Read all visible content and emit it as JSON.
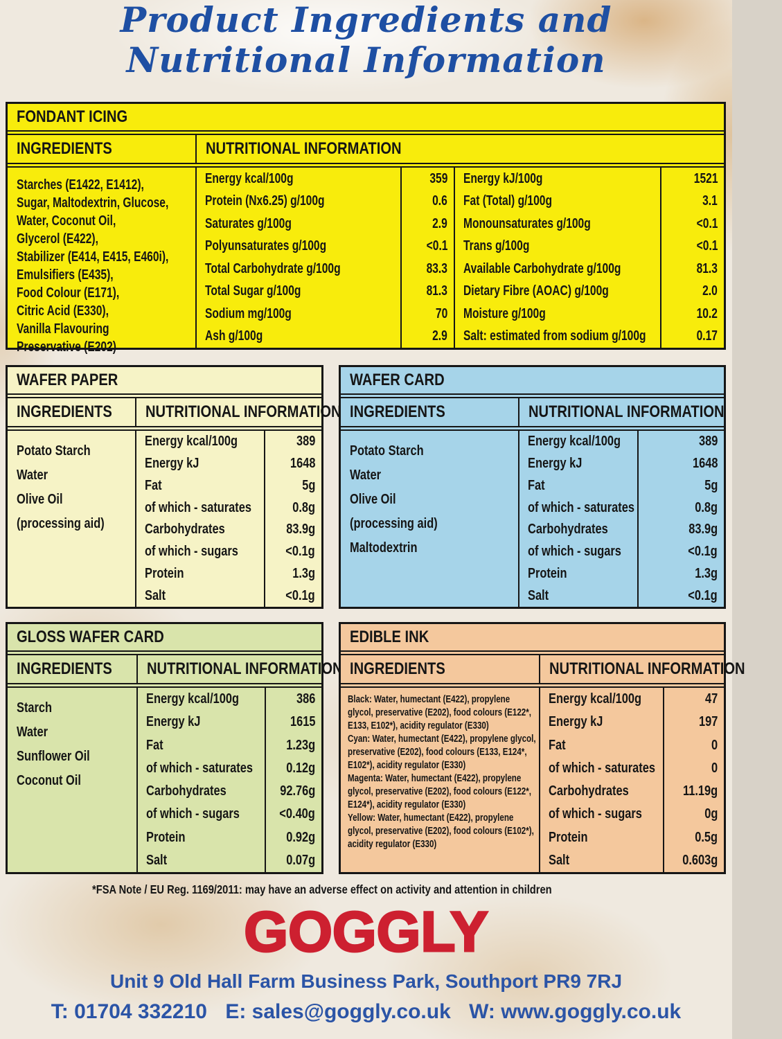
{
  "page_title": {
    "line1": "Product Ingredients and",
    "line2": "Nutritional Information",
    "color": "#1e4fa3"
  },
  "tables": {
    "fondant": {
      "title": "FONDANT ICING",
      "color": "#f8ec0c",
      "ingredients_header": "INGREDIENTS",
      "nutrition_header": "NUTRITIONAL INFORMATION",
      "ingredients": [
        "Starches (E1422, E1412),",
        "Sugar, Maltodextrin, Glucose,",
        "Water, Coconut Oil,",
        "Glycerol (E422),",
        "Stabilizer (E414, E415, E460i),",
        "Emulsifiers (E435),",
        "Food Colour (E171),",
        "Citric Acid (E330),",
        "Vanilla Flavouring",
        "Preservative (E202)"
      ],
      "rows": [
        {
          "label_left": "Energy kcal/100g",
          "value_left": "359",
          "label_right": "Energy kJ/100g",
          "value_right": "1521"
        },
        {
          "label_left": "Protein (Nx6.25) g/100g",
          "value_left": "0.6",
          "label_right": "Fat (Total) g/100g",
          "value_right": "3.1"
        },
        {
          "label_left": "Saturates g/100g",
          "value_left": "2.9",
          "label_right": "Monounsaturates g/100g",
          "value_right": "<0.1"
        },
        {
          "label_left": "Polyunsaturates g/100g",
          "value_left": "<0.1",
          "label_right": "Trans g/100g",
          "value_right": "<0.1"
        },
        {
          "label_left": "Total Carbohydrate g/100g",
          "value_left": "83.3",
          "label_right": "Available Carbohydrate g/100g",
          "value_right": "81.3"
        },
        {
          "label_left": "Total Sugar g/100g",
          "value_left": "81.3",
          "label_right": "Dietary Fibre (AOAC) g/100g",
          "value_right": "2.0"
        },
        {
          "label_left": "Sodium mg/100g",
          "value_left": "70",
          "label_right": "Moisture g/100g",
          "value_right": "10.2"
        },
        {
          "label_left": "Ash g/100g",
          "value_left": "2.9",
          "label_right": "Salt: estimated from sodium g/100g",
          "value_right": "0.17"
        }
      ]
    },
    "wafer_paper": {
      "title": "WAFER PAPER",
      "color": "#f6f3c6",
      "ingredients_header": "INGREDIENTS",
      "nutrition_header": "NUTRITIONAL INFORMATION",
      "ingredients": [
        "Potato Starch",
        "Water",
        "Olive Oil",
        "(processing aid)"
      ],
      "rows": [
        {
          "label": "Energy kcal/100g",
          "value": "389"
        },
        {
          "label": "Energy kJ",
          "value": "1648"
        },
        {
          "label": "Fat",
          "value": "5g"
        },
        {
          "label": "of which - saturates",
          "value": "0.8g"
        },
        {
          "label": "Carbohydrates",
          "value": "83.9g"
        },
        {
          "label": "of which - sugars",
          "value": "<0.1g"
        },
        {
          "label": "Protein",
          "value": "1.3g"
        },
        {
          "label": "Salt",
          "value": "<0.1g"
        }
      ]
    },
    "wafer_card": {
      "title": "WAFER CARD",
      "color": "#a6d4e9",
      "ingredients_header": "INGREDIENTS",
      "nutrition_header": "NUTRITIONAL INFORMATION",
      "ingredients": [
        "Potato Starch",
        "Water",
        "Olive Oil",
        "(processing aid)",
        "Maltodextrin"
      ],
      "rows": [
        {
          "label": "Energy kcal/100g",
          "value": "389"
        },
        {
          "label": "Energy kJ",
          "value": "1648"
        },
        {
          "label": "Fat",
          "value": "5g"
        },
        {
          "label": "of which - saturates",
          "value": "0.8g"
        },
        {
          "label": "Carbohydrates",
          "value": "83.9g"
        },
        {
          "label": "of which - sugars",
          "value": "<0.1g"
        },
        {
          "label": "Protein",
          "value": "1.3g"
        },
        {
          "label": "Salt",
          "value": "<0.1g"
        }
      ]
    },
    "gloss_wafer_card": {
      "title": "GLOSS WAFER CARD",
      "color": "#d9e4ab",
      "ingredients_header": "INGREDIENTS",
      "nutrition_header": "NUTRITIONAL INFORMATION",
      "ingredients": [
        "Starch",
        "Water",
        "Sunflower Oil",
        "Coconut Oil"
      ],
      "rows": [
        {
          "label": "Energy kcal/100g",
          "value": "386"
        },
        {
          "label": "Energy kJ",
          "value": "1615"
        },
        {
          "label": "Fat",
          "value": "1.23g"
        },
        {
          "label": "of which - saturates",
          "value": "0.12g"
        },
        {
          "label": "Carbohydrates",
          "value": "92.76g"
        },
        {
          "label": "of which - sugars",
          "value": "<0.40g"
        },
        {
          "label": "Protein",
          "value": "0.92g"
        },
        {
          "label": "Salt",
          "value": "0.07g"
        }
      ]
    },
    "edible_ink": {
      "title": "EDIBLE INK",
      "color": "#f4c89d",
      "ingredients_header": "INGREDIENTS",
      "nutrition_header": "NUTRITIONAL INFORMATION",
      "ingredients": [
        "Black: Water, humectant (E422), propylene glycol, preservative (E202), food colours (E122*, E133, E102*), acidity regulator (E330)",
        "Cyan: Water, humectant (E422), propylene glycol, preservative (E202), food colours (E133, E124*, E102*), acidity regulator (E330)",
        "Magenta: Water, humectant (E422), propylene glycol, preservative (E202), food colours (E122*, E124*), acidity regulator (E330)",
        "Yellow: Water, humectant (E422), propylene glycol, preservative (E202), food colours (E102*), acidity regulator (E330)"
      ],
      "rows": [
        {
          "label": "Energy kcal/100g",
          "value": "47"
        },
        {
          "label": "Energy kJ",
          "value": "197"
        },
        {
          "label": "Fat",
          "value": "0"
        },
        {
          "label": "of which - saturates",
          "value": "0"
        },
        {
          "label": "Carbohydrates",
          "value": "11.19g"
        },
        {
          "label": "of which - sugars",
          "value": "0g"
        },
        {
          "label": "Protein",
          "value": "0.5g"
        },
        {
          "label": "Salt",
          "value": "0.603g"
        }
      ]
    }
  },
  "footer": {
    "fsa_note": "*FSA Note / EU Reg. 1169/2011: may have an adverse effect on activity and attention in children",
    "brand": "GOGGLY",
    "brand_color": "#cd2030",
    "address": "Unit 9 Old Hall Farm Business Park, Southport PR9 7RJ",
    "contact_t": "T: 01704 332210",
    "contact_e": "E: sales@goggly.co.uk",
    "contact_w": "W: www.goggly.co.uk",
    "text_color": "#2b54a6"
  }
}
